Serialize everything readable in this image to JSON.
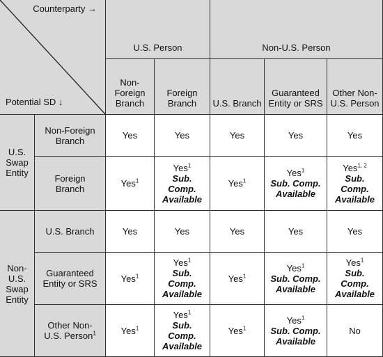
{
  "header": {
    "counterparty": "Counterparty →",
    "potential": "Potential SD ↓",
    "groups": [
      "U.S. Person",
      "Non-U.S. Person"
    ],
    "columns": [
      "Non-Foreign Branch",
      "Foreign Branch",
      "U.S. Branch",
      "Guaranteed Entity or SRS",
      "Other Non-U.S. Person"
    ]
  },
  "row_groups": [
    {
      "label": "U.S. Swap Entity",
      "rows": [
        {
          "label": "Non-Foreign Branch",
          "cells": [
            {
              "text": "Yes"
            },
            {
              "text": "Yes"
            },
            {
              "text": "Yes"
            },
            {
              "text": "Yes"
            },
            {
              "text": "Yes"
            }
          ]
        },
        {
          "label": "Foreign Branch",
          "cells": [
            {
              "text": "Yes",
              "sup": "1"
            },
            {
              "text": "Yes",
              "sup": "1",
              "note": "Sub. Comp. Available"
            },
            {
              "text": "Yes",
              "sup": "1"
            },
            {
              "text": "Yes",
              "sup": "1",
              "note": "Sub. Comp. Available"
            },
            {
              "text": "Yes",
              "sup": "1, 2",
              "note": "Sub. Comp. Available"
            }
          ]
        }
      ]
    },
    {
      "label": "Non-U.S. Swap Entity",
      "rows": [
        {
          "label": "U.S. Branch",
          "cells": [
            {
              "text": "Yes"
            },
            {
              "text": "Yes"
            },
            {
              "text": "Yes"
            },
            {
              "text": "Yes"
            },
            {
              "text": "Yes"
            }
          ]
        },
        {
          "label": "Guaranteed Entity or SRS",
          "cells": [
            {
              "text": "Yes",
              "sup": "1"
            },
            {
              "text": "Yes",
              "sup": "1",
              "note": "Sub. Comp. Available"
            },
            {
              "text": "Yes",
              "sup": "1"
            },
            {
              "text": "Yes",
              "sup": "1",
              "note": "Sub. Comp. Available"
            },
            {
              "text": "Yes",
              "sup": "1",
              "note": "Sub. Comp. Available"
            }
          ]
        },
        {
          "label": "Other Non-U.S. Person",
          "label_sup": "1",
          "cells": [
            {
              "text": "Yes",
              "sup": "1"
            },
            {
              "text": "Yes",
              "sup": "1",
              "note": "Sub. Comp. Available"
            },
            {
              "text": "Yes",
              "sup": "1"
            },
            {
              "text": "Yes",
              "sup": "1",
              "note": "Sub. Comp. Available"
            },
            {
              "text": "No"
            }
          ]
        }
      ]
    }
  ]
}
